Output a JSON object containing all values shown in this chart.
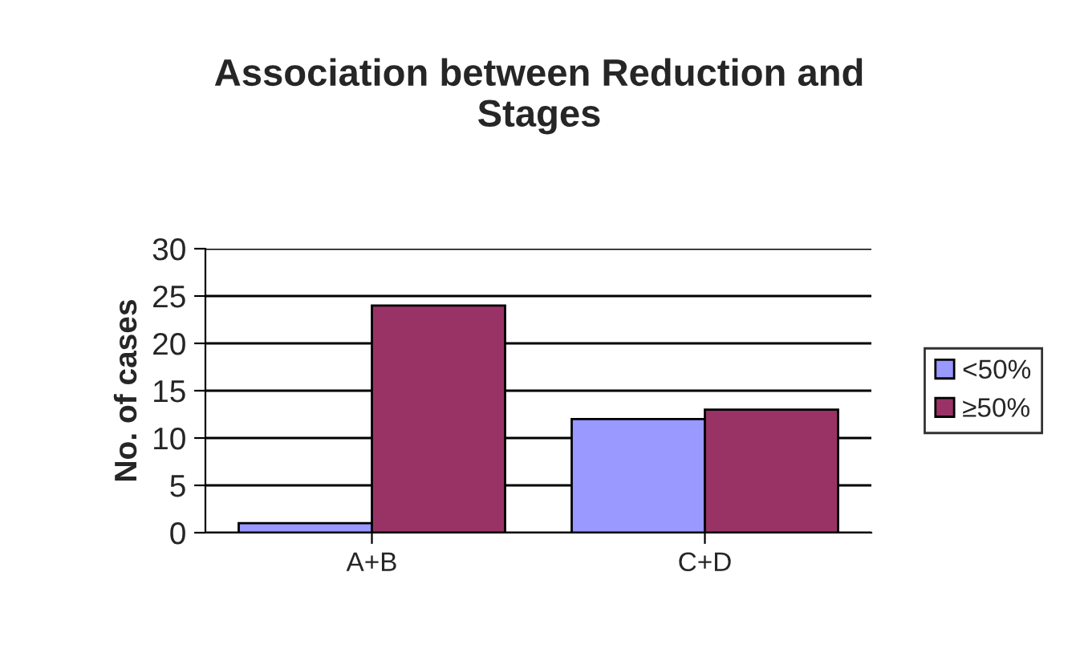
{
  "chart_data": {
    "type": "bar",
    "title": "Association between Reduction and\nStages",
    "ylabel": "No. of cases",
    "categories": [
      "A+B",
      "C+D"
    ],
    "series": [
      {
        "name": "<50%",
        "color": "#9999ff",
        "values": [
          1,
          12
        ]
      },
      {
        "name": "≥50%",
        "color": "#993366",
        "values": [
          24,
          13
        ]
      }
    ],
    "ylim": [
      0,
      30
    ],
    "yticks": [
      0,
      5,
      10,
      15,
      20,
      25,
      30
    ],
    "grid": "y",
    "legend": "right"
  }
}
